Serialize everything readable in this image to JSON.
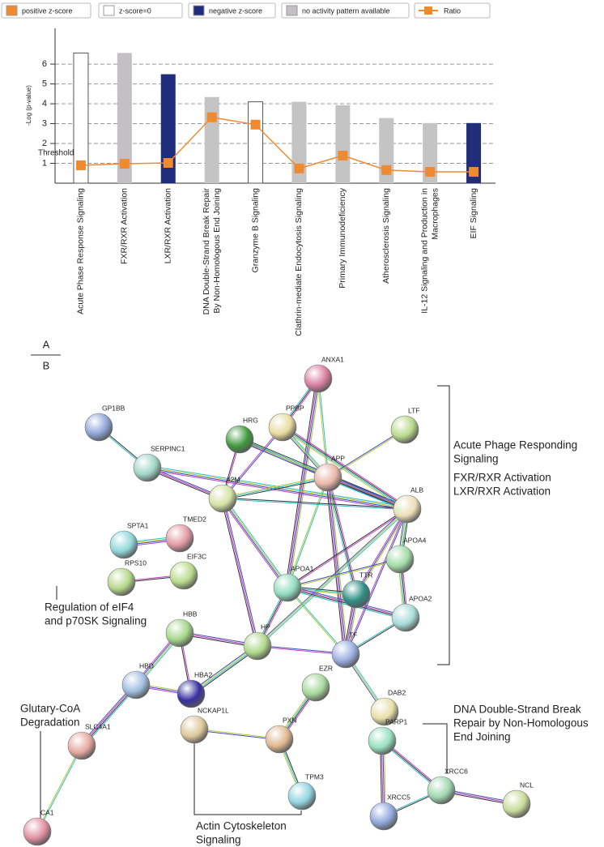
{
  "chart_data": {
    "type": "bar",
    "y_label": "-Log (p-value)",
    "categories": [
      [
        "Acute Phase Response Signaling"
      ],
      [
        "FXR/RXR Activation"
      ],
      [
        "LXR/RXR Activation"
      ],
      [
        "DNA Double-Strand Break Repair",
        "By Non-Homologous End Joining"
      ],
      [
        "Granzyme B Signaling"
      ],
      [
        "Clathrin-mediate Endocytosis Signaling"
      ],
      [
        "Primary Immunodeficiency"
      ],
      [
        "Atherosclerosis Signaling"
      ],
      [
        "IL-12 Signaling and Production in",
        "Macrophages"
      ],
      [
        "EIF Signaling"
      ]
    ],
    "values": [
      6.56,
      6.56,
      5.49,
      4.34,
      4.1,
      4.1,
      3.93,
      3.28,
      3.03,
      3.03
    ],
    "colors": [
      "#ffffff",
      "#c4bfc4",
      "#1f2d7a",
      "#c4c4c4",
      "#ffffff",
      "#c4c4c4",
      "#c4c4c4",
      "#c4c4c4",
      "#c4c4c4",
      "#1f2d7a"
    ],
    "legend": [
      {
        "label": "positive z-score",
        "color": "#f08a30"
      },
      {
        "label": "z-score=0",
        "color": "#ffffff"
      },
      {
        "label": "negative z-score",
        "color": "#1f2d7a"
      },
      {
        "label": "no activity pattern available",
        "color": "#c4bfc4"
      }
    ],
    "line": {
      "name": "Ratio",
      "color": "#f08a30",
      "values": [
        0.9,
        0.98,
        1.02,
        3.32,
        2.95,
        0.74,
        1.39,
        0.66,
        0.57,
        0.57
      ]
    },
    "annotations": [
      "Threshold"
    ],
    "ylim": [
      0,
      7.8
    ],
    "yticks": [
      1,
      2,
      3,
      4,
      5,
      6
    ],
    "grid": true
  },
  "panel_labels": [
    "A",
    "B"
  ],
  "network": {
    "nodes": [
      "ANXA1",
      "GP1BB",
      "HRG",
      "PPBP",
      "LTF",
      "SERPINC1",
      "APP",
      "A2M",
      "ALB",
      "SPTA1",
      "TMED2",
      "APOA4",
      "RPS10",
      "EIF3C",
      "APOA1",
      "TTR",
      "APOA2",
      "HBB",
      "HP",
      "TF",
      "HBD",
      "HBA2",
      "EZR",
      "DAB2",
      "NCKAP1L",
      "PXN",
      "SLC4A1",
      "PARP1",
      "TPM3",
      "XRCC6",
      "NCL",
      "XRCC5",
      "CA1"
    ],
    "annotations": [
      [
        "Acute Phage Responding",
        "Signaling"
      ],
      [
        "FXR/RXR Activation"
      ],
      [
        "LXR/RXR Activation"
      ],
      [
        "Regulation of eIF4",
        "and p70SK Signaling"
      ],
      [
        "Glutary-CoA",
        "Degradation"
      ],
      [
        "Actin Cytoskeleton",
        "Signaling"
      ],
      [
        "DNA Double-Strand Break",
        "Repair by Non-Homologous",
        "End Joining"
      ]
    ]
  }
}
